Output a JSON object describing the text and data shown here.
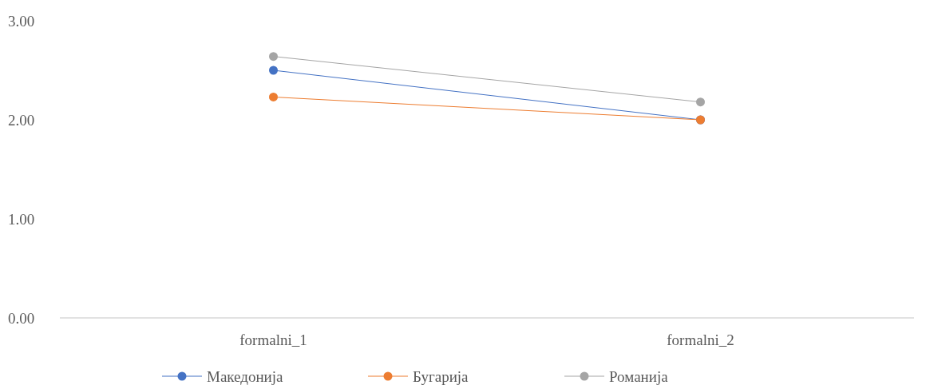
{
  "chart_data": {
    "type": "line",
    "categories": [
      "formalni_1",
      "formalni_2"
    ],
    "series": [
      {
        "name": "Македонија",
        "color": "#4472c4",
        "values": [
          2.5,
          2.0
        ]
      },
      {
        "name": "Бугарија",
        "color": "#ed7d31",
        "values": [
          2.23,
          2.0
        ]
      },
      {
        "name": "Романија",
        "color": "#a5a5a5",
        "values": [
          2.64,
          2.18
        ]
      }
    ],
    "ylim": [
      0,
      3
    ],
    "yticks": [
      {
        "value": 0,
        "label": "0.00"
      },
      {
        "value": 1,
        "label": "1.00"
      },
      {
        "value": 2,
        "label": "2.00"
      },
      {
        "value": 3,
        "label": "3.00"
      }
    ],
    "grid": false,
    "legend": "bottom",
    "marker": "circle",
    "line_style": "solid"
  }
}
